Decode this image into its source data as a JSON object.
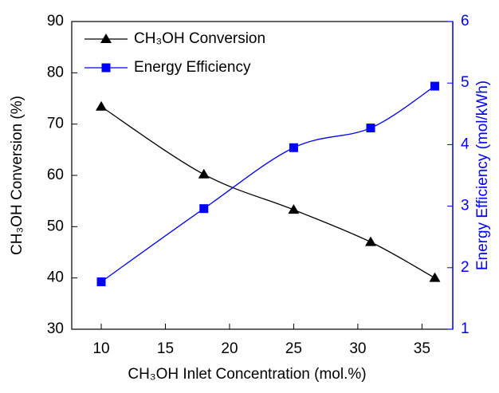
{
  "chart_data": {
    "type": "line",
    "x_label": "CH₃OH Inlet Concentration (mol.%)",
    "y_label": "CH₃OH Conversion (%)",
    "y2_label": "Energy Efficiency (mol/kWh)",
    "x": [
      10,
      18,
      25,
      31,
      36
    ],
    "series": [
      {
        "name": "CH₃OH Conversion",
        "color": "#000000",
        "marker": "triangle",
        "values": [
          73.4,
          60.2,
          53.3,
          47,
          40
        ]
      },
      {
        "name": "Energy Efficiency",
        "color": "#0000ff",
        "marker": "square",
        "axis": "y2",
        "values": [
          1.77,
          2.96,
          3.95,
          4.27,
          4.95
        ]
      }
    ],
    "xlim": [
      7.7,
      37.4
    ],
    "xticks": [
      10,
      15,
      20,
      25,
      30,
      35
    ],
    "ylim": [
      30,
      90
    ],
    "yticks": [
      30,
      40,
      50,
      60,
      70,
      80,
      90
    ],
    "y2lim": [
      1,
      6
    ],
    "y2ticks": [
      1,
      2,
      3,
      4,
      5,
      6
    ],
    "y2_color": "#0000ff",
    "legend": "top-left"
  }
}
